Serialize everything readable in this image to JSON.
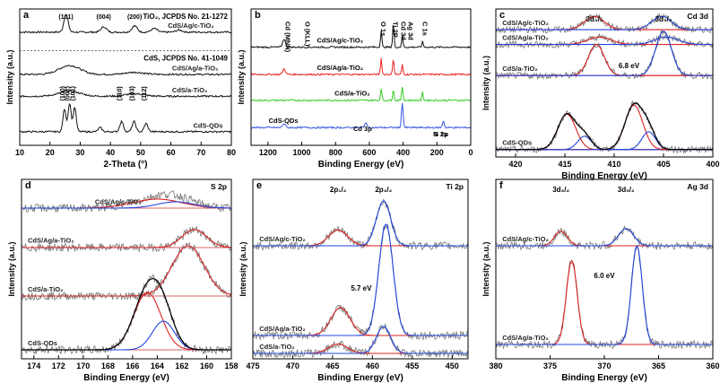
{
  "chart_data": [
    {
      "panel": "a",
      "type": "line",
      "xlabel": "2-Theta (°)",
      "ylabel": "Intensity (a.u.)",
      "xlim": [
        10,
        80
      ],
      "xticks": [
        10,
        20,
        30,
        40,
        50,
        60,
        70,
        80
      ],
      "grid": false,
      "top_label": "TiO₂, JCPDS No. 21-1272",
      "bottom_label": "CdS, JCPDS No. 41-1049",
      "series": [
        {
          "name": "CdS/Ag/c-TiO₂",
          "color": "#111111",
          "base": 0.83,
          "amp": 0.13,
          "peaks": [
            [
              25.3,
              1.0,
              0.7
            ],
            [
              37.8,
              0.3,
              0.9
            ],
            [
              48.0,
              0.35,
              0.9
            ],
            [
              54.5,
              0.2,
              1.0
            ],
            [
              62.7,
              0.12,
              1.0
            ]
          ]
        },
        {
          "name": "CdS/Ag/a-TiO₂",
          "color": "#111111",
          "base": 0.52,
          "amp": 0.13,
          "peaks": [
            [
              26.5,
              0.5,
              3.5
            ],
            [
              48.0,
              0.12,
              3.0
            ]
          ]
        },
        {
          "name": "CdS/a-TiO₂",
          "color": "#111111",
          "base": 0.36,
          "amp": 0.06,
          "peaks": [
            [
              26.5,
              0.6,
              3.5
            ],
            [
              48.0,
              0.3,
              3.0
            ]
          ]
        },
        {
          "name": "CdS-QDs",
          "color": "#111111",
          "base": 0.1,
          "amp": 0.3,
          "peaks": [
            [
              24.8,
              0.55,
              0.5
            ],
            [
              26.5,
              0.7,
              0.5
            ],
            [
              28.2,
              0.6,
              0.5
            ],
            [
              36.6,
              0.1,
              0.6
            ],
            [
              43.7,
              0.25,
              0.6
            ],
            [
              47.8,
              0.25,
              0.6
            ],
            [
              51.8,
              0.2,
              0.6
            ]
          ]
        }
      ],
      "peak_labels": [
        {
          "text": "(101)",
          "x": 25.3,
          "group": "top"
        },
        {
          "text": "(004)",
          "x": 37.8,
          "group": "top"
        },
        {
          "text": "(200)",
          "x": 48.0,
          "group": "top"
        },
        {
          "text": "(100)",
          "x": 24.8,
          "group": "bottom"
        },
        {
          "text": "(002)",
          "x": 26.5,
          "group": "bottom"
        },
        {
          "text": "(101)",
          "x": 28.2,
          "group": "bottom"
        },
        {
          "text": "(110)",
          "x": 43.7,
          "group": "bottom"
        },
        {
          "text": "(103)",
          "x": 47.8,
          "group": "bottom"
        },
        {
          "text": "(112)",
          "x": 51.8,
          "group": "bottom"
        }
      ]
    },
    {
      "panel": "b",
      "type": "line",
      "xlabel": "Binding Energy (eV)",
      "ylabel": "Intensity (a.u.)",
      "xlim": [
        1300,
        0
      ],
      "xticks": [
        1200,
        1000,
        800,
        600,
        400,
        200,
        0
      ],
      "grid": false,
      "series": [
        {
          "name": "CdS/Ag/c-TiO₂",
          "color": "#111111",
          "base": 0.72,
          "amp": 0.2,
          "peaks": [
            [
              1105,
              0.3,
              8
            ],
            [
              530,
              0.6,
              4
            ],
            [
              458,
              0.9,
              4
            ],
            [
              405,
              0.4,
              4
            ],
            [
              285,
              0.2,
              4
            ]
          ]
        },
        {
          "name": "CdS/Ag/a-TiO₂",
          "color": "#ee2222",
          "base": 0.52,
          "amp": 0.2,
          "peaks": [
            [
              1105,
              0.2,
              8
            ],
            [
              530,
              0.6,
              4
            ],
            [
              458,
              0.6,
              4
            ],
            [
              405,
              0.35,
              4
            ]
          ]
        },
        {
          "name": "CdS/a-TiO₂",
          "color": "#33cc22",
          "base": 0.33,
          "amp": 0.2,
          "peaks": [
            [
              530,
              0.45,
              4
            ],
            [
              458,
              0.4,
              4
            ],
            [
              405,
              0.5,
              4
            ],
            [
              285,
              0.3,
              4
            ]
          ]
        },
        {
          "name": "CdS-QDs",
          "color": "#3355dd",
          "base": 0.13,
          "amp": 0.2,
          "peaks": [
            [
              1105,
              0.15,
              8
            ],
            [
              620,
              0.2,
              6
            ],
            [
              405,
              0.9,
              5
            ],
            [
              162,
              0.25,
              5
            ]
          ]
        }
      ],
      "peak_labels": [
        {
          "text": "Cd (MNN)",
          "x": 1095
        },
        {
          "text": "O (KLL)",
          "x": 978
        },
        {
          "text": "O 1s",
          "x": 530
        },
        {
          "text": "Ti 2P",
          "x": 458
        },
        {
          "text": "Cd 3d",
          "x": 410
        },
        {
          "text": "Ag 3d",
          "x": 368
        },
        {
          "text": "C 1s",
          "x": 285
        },
        {
          "text": "S 2p",
          "x": 175
        },
        {
          "text": "Cd 3p",
          "x": 640
        },
        {
          "text": "N 1s",
          "x": 180
        }
      ]
    },
    {
      "panel": "c",
      "type": "line",
      "title": "Cd 3d",
      "xlabel": "Binding Energy (eV)",
      "ylabel": "Intensity (a.u.)",
      "xlim": [
        422,
        400
      ],
      "xticks": [
        420,
        415,
        410,
        405,
        400
      ],
      "grid": false,
      "annotations": [
        {
          "text": "3d₃/₂",
          "x": 412
        },
        {
          "text": "3d₅/₂",
          "x": 405
        },
        {
          "text": "6.8 eV",
          "x": 408.5
        }
      ],
      "series": [
        {
          "name": "CdS/Ag/c-TiO₂",
          "base": 0.86,
          "amp": 0.09,
          "peaks": [
            [
              412.0,
              1.0,
              1.0
            ],
            [
              405.2,
              1.0,
              1.0
            ]
          ]
        },
        {
          "name": "CdS/Ag/a-TiO₂",
          "base": 0.76,
          "amp": 0.05,
          "peaks": [
            [
              411.5,
              1.0,
              1.2
            ],
            [
              404.7,
              1.0,
              1.2
            ]
          ]
        },
        {
          "name": "CdS/a-TiO₂",
          "base": 0.55,
          "amp": 0.3,
          "peaks": [
            [
              411.8,
              0.7,
              0.8
            ],
            [
              405.0,
              1.0,
              0.8
            ]
          ]
        },
        {
          "name": "CdS-QDs",
          "base": 0.05,
          "amp": 0.3,
          "peaks": [
            [
              414.8,
              0.8,
              0.9
            ],
            [
              413.0,
              0.3,
              0.7
            ],
            [
              408.0,
              1.0,
              0.9
            ],
            [
              406.5,
              0.4,
              0.7
            ]
          ]
        }
      ]
    },
    {
      "panel": "d",
      "type": "line",
      "title": "S 2p",
      "xlabel": "Binding Energy (eV)",
      "ylabel": "Intensity (a.u.)",
      "xlim": [
        175,
        158
      ],
      "xticks": [
        174,
        172,
        170,
        168,
        166,
        164,
        162,
        160,
        158
      ],
      "grid": false,
      "series": [
        {
          "name": "CdS/Ag/c-TiO₂",
          "base": 0.84,
          "amp": 0.05,
          "peaks": [
            [
              164.0,
              1.0,
              2.0
            ],
            [
              162.5,
              0.7,
              1.5
            ]
          ]
        },
        {
          "name": "CdS/Ag/a-TiO₂",
          "base": 0.62,
          "amp": 0.1,
          "peaks": [
            [
              161.0,
              1.0,
              1.0
            ]
          ]
        },
        {
          "name": "CdS/a-TiO₂",
          "base": 0.35,
          "amp": 0.28,
          "peaks": [
            [
              161.5,
              1.0,
              1.3
            ]
          ]
        },
        {
          "name": "CdS-QDs",
          "base": 0.05,
          "amp": 0.32,
          "peaks": [
            [
              164.8,
              1.0,
              1.1
            ],
            [
              163.5,
              0.5,
              0.9
            ]
          ]
        }
      ]
    },
    {
      "panel": "e",
      "type": "line",
      "title": "Ti 2p",
      "xlabel": "Binding Energy (eV)",
      "ylabel": "Intensity (a.u.)",
      "xlim": [
        475,
        448
      ],
      "xticks": [
        475,
        470,
        465,
        460,
        455,
        450
      ],
      "grid": false,
      "annotations": [
        {
          "text": "2p₁/₂",
          "x": 464.3
        },
        {
          "text": "2p₃/₂",
          "x": 458.6
        },
        {
          "text": "5.7 eV",
          "x": 461.4
        }
      ],
      "series": [
        {
          "name": "CdS/Ag/c-TiO₂",
          "base": 0.63,
          "amp": 0.25,
          "peaks": [
            [
              464.3,
              0.35,
              1.2
            ],
            [
              458.6,
              1.0,
              0.9
            ]
          ]
        },
        {
          "name": "CdS/Ag/a-TiO₂",
          "base": 0.13,
          "amp": 0.62,
          "peaks": [
            [
              464.0,
              0.25,
              1.2
            ],
            [
              458.3,
              1.0,
              0.9
            ]
          ]
        },
        {
          "name": "CdS/a-TiO₂",
          "base": 0.03,
          "amp": 0.15,
          "peaks": [
            [
              464.3,
              0.35,
              1.2
            ],
            [
              458.6,
              1.0,
              0.9
            ]
          ]
        }
      ]
    },
    {
      "panel": "f",
      "type": "line",
      "title": "Ag 3d",
      "xlabel": "Binding Energy (eV)",
      "ylabel": "Intensity (a.u.)",
      "xlim": [
        380,
        360
      ],
      "xticks": [
        380,
        375,
        370,
        365,
        360
      ],
      "grid": false,
      "annotations": [
        {
          "text": "3d₃/₂",
          "x": 374
        },
        {
          "text": "3d₅/₂",
          "x": 368
        },
        {
          "text": "6.0 eV",
          "x": 370
        }
      ],
      "series": [
        {
          "name": "CdS/Ag/c-TiO₂",
          "base": 0.63,
          "amp": 0.08,
          "peaks": [
            [
              374.0,
              1.0,
              0.6
            ],
            [
              368.0,
              1.2,
              0.7
            ]
          ]
        },
        {
          "name": "CdS/Ag/a-TiO₂",
          "base": 0.08,
          "amp": 0.55,
          "peaks": [
            [
              373.0,
              0.85,
              0.5
            ],
            [
              367.0,
              1.0,
              0.5
            ]
          ]
        }
      ]
    }
  ]
}
